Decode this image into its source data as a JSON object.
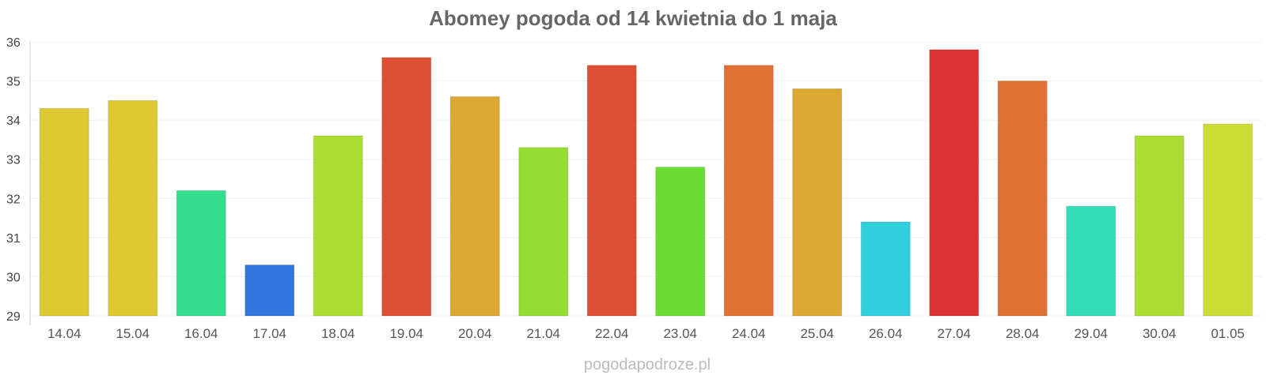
{
  "chart_data": {
    "type": "bar",
    "title": "Abomey pogoda od 14 kwietnia do 1 maja",
    "xlabel": "",
    "ylabel": "",
    "ylim": [
      29,
      36
    ],
    "yticks": [
      29,
      30,
      31,
      32,
      33,
      34,
      35,
      36
    ],
    "grid": true,
    "categories": [
      "14.04",
      "15.04",
      "16.04",
      "17.04",
      "18.04",
      "19.04",
      "20.04",
      "21.04",
      "22.04",
      "23.04",
      "24.04",
      "25.04",
      "26.04",
      "27.04",
      "28.04",
      "29.04",
      "30.04",
      "01.05"
    ],
    "values": [
      34.3,
      34.5,
      32.2,
      30.3,
      33.6,
      35.6,
      34.6,
      33.3,
      35.4,
      32.8,
      35.4,
      34.8,
      31.4,
      35.8,
      35.0,
      31.8,
      33.6,
      33.9
    ],
    "colors": [
      "#dcc932",
      "#dcc932",
      "#36dd8c",
      "#3176dd",
      "#abdd32",
      "#dd4e32",
      "#dda832",
      "#96dd32",
      "#dd4e32",
      "#69dd32",
      "#dd7032",
      "#dda832",
      "#32cfdd",
      "#dd3232",
      "#dd7032",
      "#32ddb7",
      "#abdd32",
      "#cddc32"
    ]
  },
  "footer": {
    "credit": "pogodapodroze.pl"
  }
}
